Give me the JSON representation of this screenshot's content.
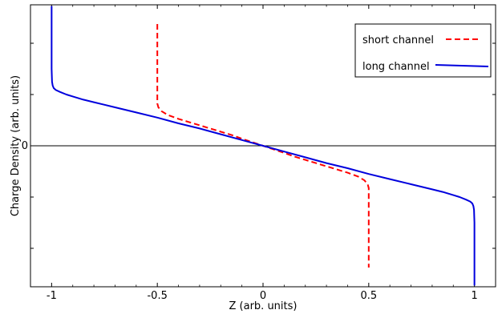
{
  "chart_data": {
    "type": "line",
    "title": "",
    "xlabel": "Z (arb. units)",
    "ylabel": "Charge Density (arb. units)",
    "xlim": [
      -1.1,
      1.1
    ],
    "ylim": [
      -1.1,
      1.1
    ],
    "x_ticks": [
      -1,
      -0.5,
      0,
      0.5,
      1
    ],
    "x_tick_labels": [
      "-1",
      "-0.5",
      "0",
      "0.5",
      "1"
    ],
    "y_ticks": [
      0
    ],
    "y_tick_labels": [
      "0"
    ],
    "zero_line": true,
    "grid": false,
    "legend_position": "top-right",
    "series": [
      {
        "name": "short channel",
        "color": "#ff0000",
        "dash": "dashed",
        "x": [
          -0.5,
          -0.5,
          -0.5,
          -0.5,
          -0.5,
          -0.5,
          -0.495,
          -0.48,
          -0.45,
          -0.4,
          -0.35,
          -0.3,
          -0.25,
          -0.2,
          -0.15,
          -0.1,
          -0.05,
          0,
          0.05,
          0.1,
          0.15,
          0.2,
          0.25,
          0.3,
          0.35,
          0.4,
          0.45,
          0.48,
          0.495,
          0.5,
          0.5,
          0.5,
          0.5,
          0.5,
          0.5
        ],
        "y": [
          0.95,
          0.8,
          0.6,
          0.45,
          0.38,
          0.33,
          0.3,
          0.27,
          0.24,
          0.21,
          0.185,
          0.16,
          0.135,
          0.11,
          0.085,
          0.055,
          0.028,
          0,
          -0.028,
          -0.055,
          -0.085,
          -0.11,
          -0.135,
          -0.16,
          -0.185,
          -0.21,
          -0.24,
          -0.27,
          -0.3,
          -0.33,
          -0.38,
          -0.45,
          -0.6,
          -0.8,
          -0.95
        ]
      },
      {
        "name": "long channel",
        "color": "#0000dd",
        "dash": "solid",
        "x": [
          -1,
          -1,
          -1,
          -0.998,
          -0.995,
          -0.99,
          -0.98,
          -0.96,
          -0.93,
          -0.9,
          -0.85,
          -0.8,
          -0.7,
          -0.6,
          -0.5,
          -0.4,
          -0.3,
          -0.2,
          -0.1,
          0,
          0.1,
          0.2,
          0.3,
          0.4,
          0.5,
          0.6,
          0.7,
          0.8,
          0.85,
          0.9,
          0.93,
          0.96,
          0.98,
          0.99,
          0.995,
          0.998,
          1,
          1,
          1
        ],
        "y": [
          1.09,
          0.8,
          0.6,
          0.5,
          0.47,
          0.45,
          0.435,
          0.42,
          0.4,
          0.385,
          0.36,
          0.34,
          0.3,
          0.26,
          0.22,
          0.175,
          0.135,
          0.09,
          0.045,
          0,
          -0.045,
          -0.09,
          -0.135,
          -0.175,
          -0.22,
          -0.26,
          -0.3,
          -0.34,
          -0.36,
          -0.385,
          -0.4,
          -0.42,
          -0.435,
          -0.45,
          -0.47,
          -0.5,
          -0.6,
          -0.8,
          -1.09
        ]
      }
    ]
  }
}
